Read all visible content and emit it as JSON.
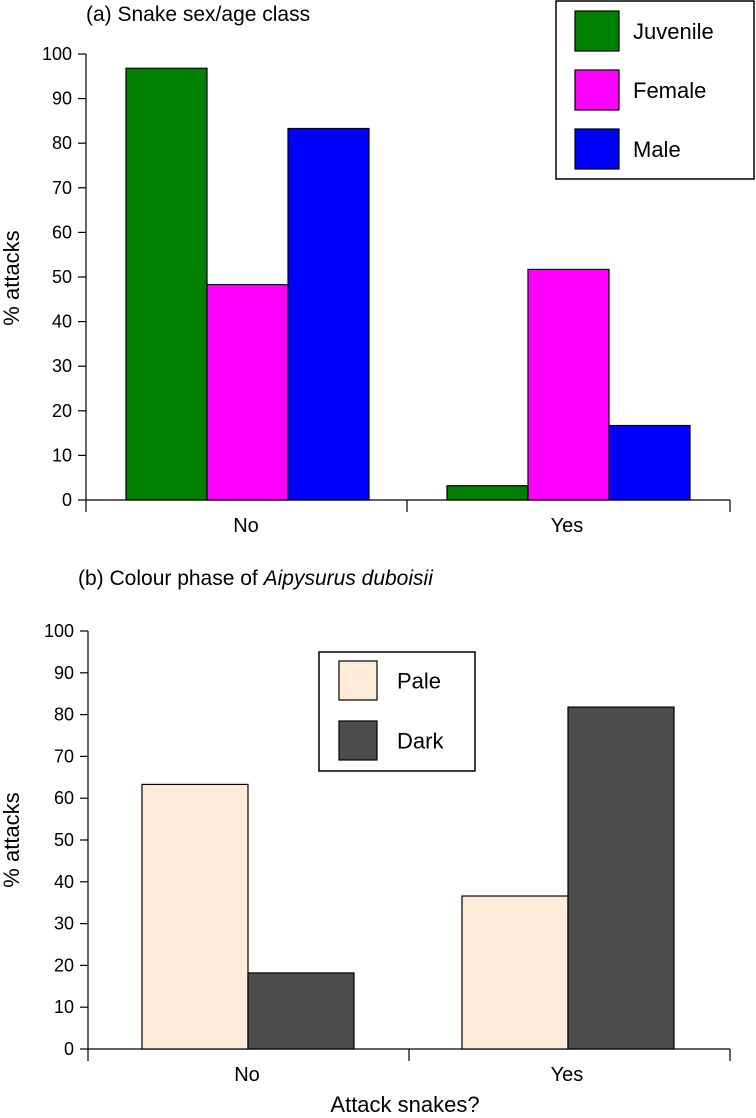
{
  "chart_data": [
    {
      "type": "bar",
      "title": "(a) Snake sex/age class",
      "ylabel": "% attacks",
      "xlabel": "",
      "ylim": [
        0,
        100
      ],
      "yticks": [
        0,
        10,
        20,
        30,
        40,
        50,
        60,
        70,
        80,
        90,
        100
      ],
      "categories": [
        "No",
        "Yes"
      ],
      "legend_position": "top-right",
      "series": [
        {
          "name": "Juvenile",
          "color": "#008000",
          "values": [
            96.8,
            3.2
          ]
        },
        {
          "name": "Female",
          "color": "#ff00ff",
          "values": [
            48.3,
            51.7
          ]
        },
        {
          "name": "Male",
          "color": "#0000ff",
          "values": [
            83.3,
            16.7
          ]
        }
      ]
    },
    {
      "type": "bar",
      "title_prefix": "(b) Colour phase of ",
      "title_italic": "Aipysurus duboisii",
      "ylabel": "% attacks",
      "xlabel": "Attack snakes?",
      "ylim": [
        0,
        100
      ],
      "yticks": [
        0,
        10,
        20,
        30,
        40,
        50,
        60,
        70,
        80,
        90,
        100
      ],
      "categories": [
        "No",
        "Yes"
      ],
      "legend_position": "top-center",
      "series": [
        {
          "name": "Pale",
          "color": "#ffebd7",
          "values": [
            63.3,
            36.6
          ]
        },
        {
          "name": "Dark",
          "color": "#4d4d4d",
          "values": [
            18.2,
            81.8
          ]
        }
      ]
    }
  ]
}
